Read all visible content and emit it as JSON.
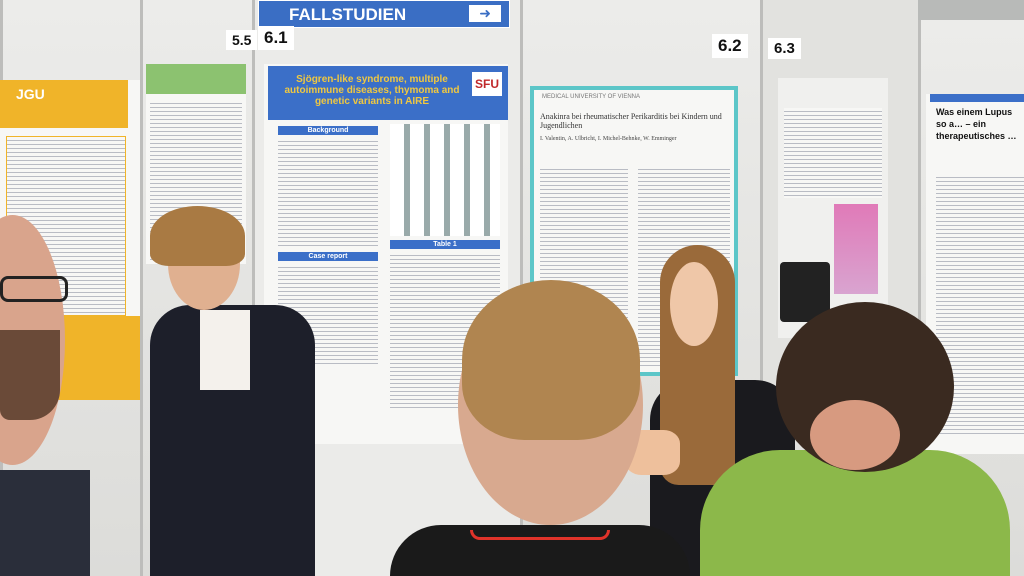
{
  "signs": {
    "banner": "FALLSTUDIEN",
    "board_55": "5.5",
    "board_61": "6.1",
    "board_62": "6.2",
    "board_63": "6.3"
  },
  "posters": {
    "left_logo": "JGU",
    "center_title": "Sjögren-like syndrome, multiple autoimmune diseases, thymoma and genetic variants in AIRE",
    "center_logo": "SFU",
    "center_sections": [
      "Background",
      "Case report",
      "Table 1"
    ],
    "right_title": "Anakinra bei rheumatischer Perikarditis bei Kindern und Jugendlichen",
    "right_authors": "I. Valentin, A. Ulbricht, I. Michel-Behnke, W. Emminger",
    "right_logo": "MEDICAL UNIVERSITY OF VIENNA",
    "far_right_title": "Was einem Lupus so a… – ein therapeutisches …"
  },
  "colors": {
    "poster_blue": "#3b6fc8",
    "accent_teal": "#5cc6c8",
    "lanyard": "#e0332a",
    "sweater_green": "#8cb84a",
    "logo_yellow": "#f0b429"
  }
}
